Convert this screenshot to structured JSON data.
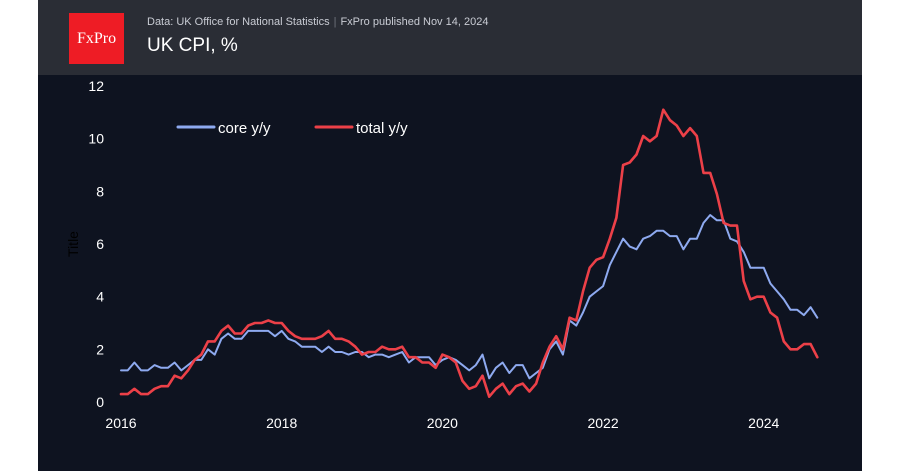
{
  "header": {
    "logo_text": "FxPro",
    "source": "Data: UK Office for National Statistics",
    "published": "FxPro published Nov 14, 2024",
    "title": "UK CPI, %"
  },
  "colors": {
    "background": "#0e1320",
    "header": "#2a2d35",
    "logo": "#ee1c25",
    "core": "#8eaaf0",
    "total": "#ec4048",
    "text": "#ffffff"
  },
  "chart_data": {
    "type": "line",
    "title": "UK CPI, %",
    "xlabel": "",
    "ylabel": "Title",
    "xlim": [
      2016,
      2024.75
    ],
    "ylim": [
      0,
      12
    ],
    "x_ticks": [
      "2016",
      "2018",
      "2020",
      "2022",
      "2024"
    ],
    "y_ticks": [
      "0",
      "2",
      "4",
      "6",
      "8",
      "10",
      "12"
    ],
    "grid": false,
    "legend": "top-left",
    "x_start": "2016-01",
    "series": [
      {
        "name": "core y/y",
        "color": "#8eaaf0",
        "values": [
          1.2,
          1.2,
          1.5,
          1.2,
          1.2,
          1.4,
          1.3,
          1.3,
          1.5,
          1.2,
          1.4,
          1.6,
          1.6,
          2.0,
          1.8,
          2.4,
          2.6,
          2.4,
          2.4,
          2.7,
          2.7,
          2.7,
          2.7,
          2.5,
          2.7,
          2.4,
          2.3,
          2.1,
          2.1,
          2.1,
          1.9,
          2.1,
          1.9,
          1.9,
          1.8,
          1.9,
          1.9,
          1.7,
          1.8,
          1.8,
          1.7,
          1.8,
          1.9,
          1.5,
          1.7,
          1.7,
          1.7,
          1.4,
          1.6,
          1.7,
          1.6,
          1.4,
          1.2,
          1.4,
          1.8,
          0.9,
          1.3,
          1.5,
          1.1,
          1.4,
          1.4,
          0.9,
          1.1,
          1.3,
          2.0,
          2.3,
          1.8,
          3.1,
          2.9,
          3.4,
          4.0,
          4.2,
          4.4,
          5.2,
          5.7,
          6.2,
          5.9,
          5.8,
          6.2,
          6.3,
          6.5,
          6.5,
          6.3,
          6.3,
          5.8,
          6.2,
          6.2,
          6.8,
          7.1,
          6.9,
          6.9,
          6.2,
          6.1,
          5.7,
          5.1,
          5.1,
          5.1,
          4.5,
          4.2,
          3.9,
          3.5,
          3.5,
          3.3,
          3.6,
          3.2
        ]
      },
      {
        "name": "total y/y",
        "color": "#ec4048",
        "values": [
          0.3,
          0.3,
          0.5,
          0.3,
          0.3,
          0.5,
          0.6,
          0.6,
          1.0,
          0.9,
          1.2,
          1.6,
          1.8,
          2.3,
          2.3,
          2.7,
          2.9,
          2.6,
          2.6,
          2.9,
          3.0,
          3.0,
          3.1,
          3.0,
          3.0,
          2.7,
          2.5,
          2.4,
          2.4,
          2.4,
          2.5,
          2.7,
          2.4,
          2.4,
          2.3,
          2.1,
          1.8,
          1.9,
          1.9,
          2.1,
          2.0,
          2.0,
          2.1,
          1.7,
          1.7,
          1.5,
          1.5,
          1.3,
          1.8,
          1.7,
          1.5,
          0.8,
          0.5,
          0.6,
          1.0,
          0.2,
          0.5,
          0.7,
          0.3,
          0.6,
          0.7,
          0.4,
          0.7,
          1.5,
          2.1,
          2.5,
          2.0,
          3.2,
          3.1,
          4.2,
          5.1,
          5.4,
          5.5,
          6.2,
          7.0,
          9.0,
          9.1,
          9.4,
          10.1,
          9.9,
          10.1,
          11.1,
          10.7,
          10.5,
          10.1,
          10.4,
          10.1,
          8.7,
          8.7,
          7.9,
          6.8,
          6.7,
          6.7,
          4.6,
          3.9,
          4.0,
          4.0,
          3.4,
          3.2,
          2.3,
          2.0,
          2.0,
          2.2,
          2.2,
          1.7
        ]
      }
    ]
  }
}
